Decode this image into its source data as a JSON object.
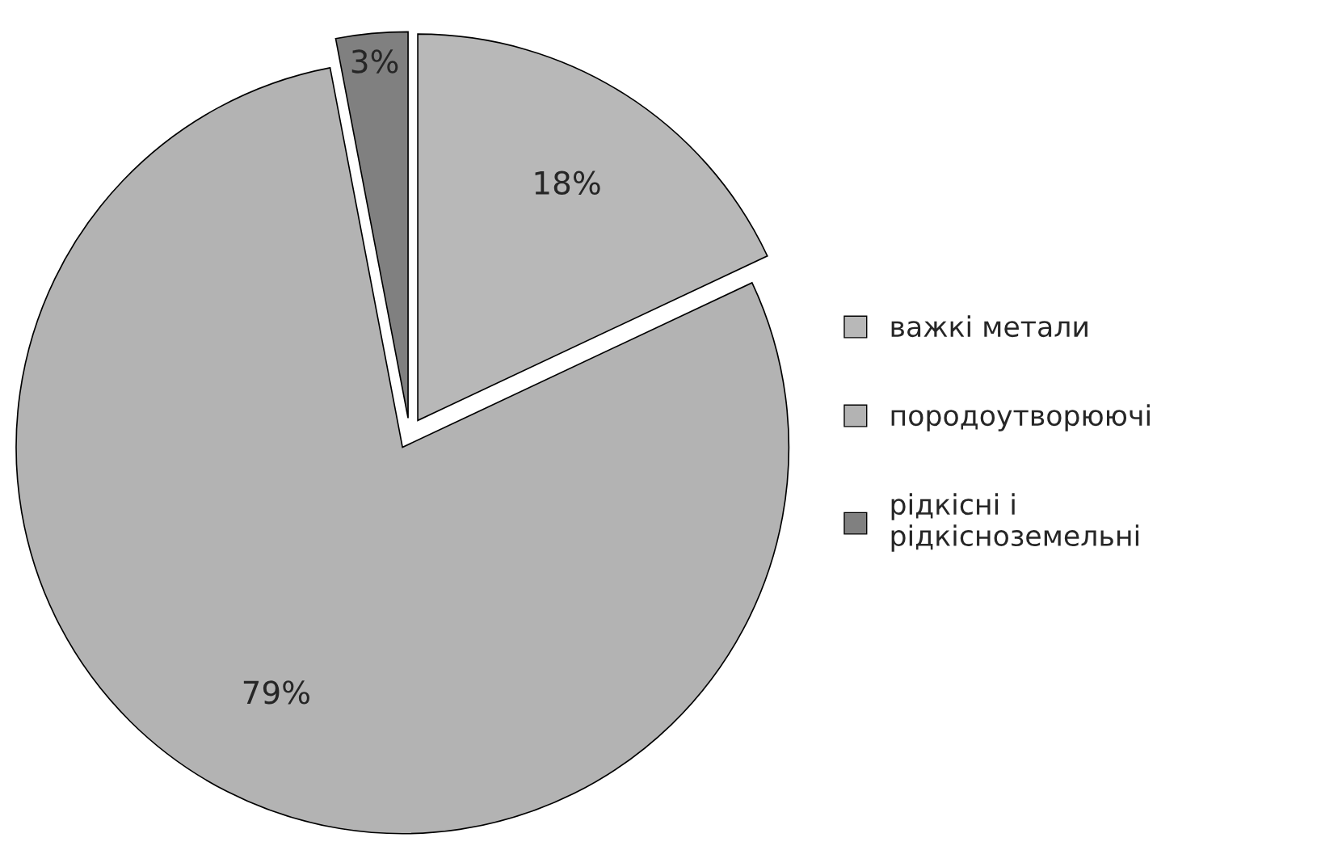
{
  "chart_data": {
    "type": "pie",
    "categories": [
      "важкі метали",
      "породоутворюючі",
      "рідкісні і\nрідкісноземельні"
    ],
    "values": [
      18,
      79,
      3
    ],
    "colors": [
      "#b8b8b8",
      "#b3b3b3",
      "#808080"
    ],
    "value_labels": [
      "18%",
      "79%",
      "3%"
    ],
    "legend": "right"
  }
}
